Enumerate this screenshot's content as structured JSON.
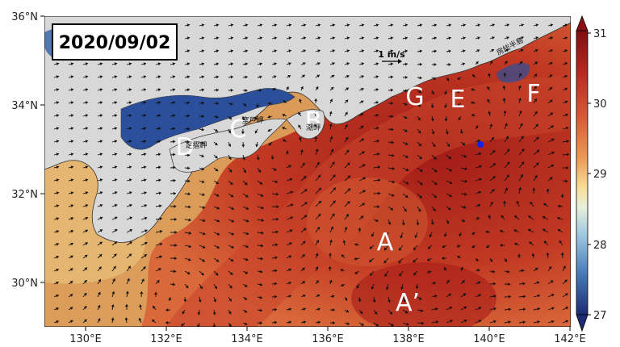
{
  "date_label": "2020/09/02",
  "scale": {
    "label": "1 m/s"
  },
  "lat_ticks": [
    "36°N",
    "34°N",
    "32°N",
    "30°N"
  ],
  "lon_ticks": [
    "130°E",
    "132°E",
    "134°E",
    "136°E",
    "138°E",
    "140°E",
    "142°E"
  ],
  "region_labels": [
    "A",
    "A’",
    "B",
    "C",
    "D",
    "E",
    "F",
    "G"
  ],
  "place_names": [
    "室戸岬",
    "足摺岬",
    "潮岬",
    "房総半島"
  ],
  "colorbar": {
    "ticks": [
      "31",
      "30",
      "29",
      "28",
      "27"
    ],
    "colors": [
      "#7f0e12",
      "#c0392b",
      "#e8703e",
      "#f5c16c",
      "#fbf1b0",
      "#d7ecf1",
      "#7fb2d5",
      "#2f5fa8",
      "#1d2a74"
    ]
  },
  "colors": {
    "land": "#dcdcdc",
    "ocean_warm": "#b5271d",
    "ocean_mid": "#dd6a3a",
    "ocean_cool": "#d9a15a",
    "coastal_cold": "#2b4f9b",
    "marker": "#1122ee"
  }
}
